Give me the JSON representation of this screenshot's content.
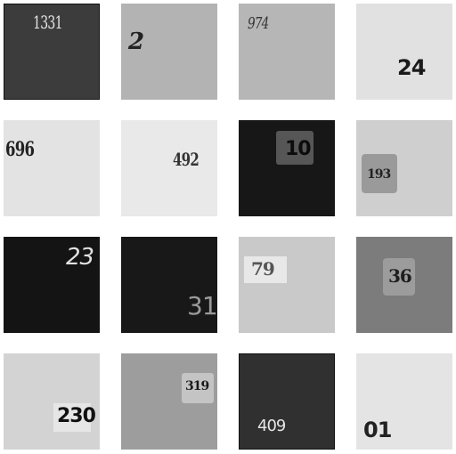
{
  "tiles": [
    {
      "label": "1331"
    },
    {
      "label": "2"
    },
    {
      "label": "974"
    },
    {
      "label": "24"
    },
    {
      "label": "696"
    },
    {
      "label": "492"
    },
    {
      "label": "10"
    },
    {
      "label": "193"
    },
    {
      "label": "23"
    },
    {
      "label": "31"
    },
    {
      "label": "79"
    },
    {
      "label": "36"
    },
    {
      "label": "230"
    },
    {
      "label": "319"
    },
    {
      "label": "409"
    },
    {
      "label": "01"
    }
  ]
}
